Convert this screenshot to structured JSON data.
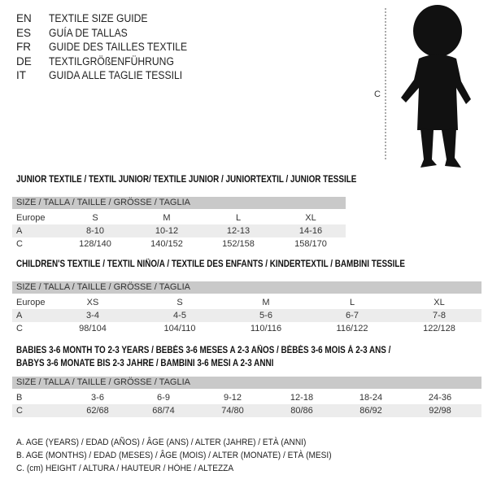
{
  "languages": [
    {
      "code": "EN",
      "title": "TEXTILE SIZE GUIDE"
    },
    {
      "code": "ES",
      "title": "GUÍA DE TALLAS"
    },
    {
      "code": "FR",
      "title": "GUIDE DES TAILLES TEXTILE"
    },
    {
      "code": "DE",
      "title": "TEXTILGRÖßENFÜHRUNG"
    },
    {
      "code": "IT",
      "title": "GUIDA ALLE TAGLIE TESSILI"
    }
  ],
  "figure": {
    "measure_label": "C"
  },
  "junior": {
    "title": "JUNIOR TEXTILE / TEXTIL JUNIOR/ TEXTILE JUNIOR / JUNIORTEXTIL / JUNIOR TESSILE",
    "header": "SIZE / TALLA / TAILLE / GRÖSSE / TAGLIA",
    "rows": [
      {
        "label": "Europe",
        "values": [
          "S",
          "M",
          "L",
          "XL"
        ]
      },
      {
        "label": "A",
        "values": [
          "8-10",
          "10-12",
          "12-13",
          "14-16"
        ]
      },
      {
        "label": "C",
        "values": [
          "128/140",
          "140/152",
          "152/158",
          "158/170"
        ]
      }
    ]
  },
  "children": {
    "title": "CHILDREN'S TEXTILE / TEXTIL NIÑO/A / TEXTILE DES ENFANTS / KINDERTEXTIL / BAMBINI TESSILE",
    "header": "SIZE / TALLA / TAILLE / GRÖSSE / TAGLIA",
    "rows": [
      {
        "label": "Europe",
        "values": [
          "XS",
          "S",
          "M",
          "L",
          "XL"
        ]
      },
      {
        "label": "A",
        "values": [
          "3-4",
          "4-5",
          "5-6",
          "6-7",
          "7-8"
        ]
      },
      {
        "label": "C",
        "values": [
          "98/104",
          "104/110",
          "110/116",
          "116/122",
          "122/128"
        ]
      }
    ]
  },
  "babies": {
    "title_line1": "BABIES 3-6 MONTH TO 2-3 YEARS / BEBÉS 3-6 MESES A 2-3 AÑOS / BÉBÉS 3-6 MOIS À 2-3 ANS /",
    "title_line2": "BABYS 3-6 MONATE BIS 2-3 JAHRE / BAMBINI 3-6 MESI A 2-3 ANNI",
    "header": "SIZE / TALLA / TAILLE / GRÖSSE / TAGLIA",
    "rows": [
      {
        "label": "B",
        "values": [
          "3-6",
          "6-9",
          "9-12",
          "12-18",
          "18-24",
          "24-36"
        ]
      },
      {
        "label": "C",
        "values": [
          "62/68",
          "68/74",
          "74/80",
          "80/86",
          "86/92",
          "92/98"
        ]
      }
    ]
  },
  "legend": [
    "A. AGE (YEARS) / EDAD (AÑOS) / ÂGE (ANS) / ALTER (JAHRE) / ETÀ (ANNI)",
    "B. AGE (MONTHS) / EDAD (MESES) / ÂGE (MOIS) / ALTER (MONATE) / ETÀ (MESI)",
    "C. (cm) HEIGHT / ALTURA / HAUTEUR / HÖHE / ALTEZZA"
  ]
}
